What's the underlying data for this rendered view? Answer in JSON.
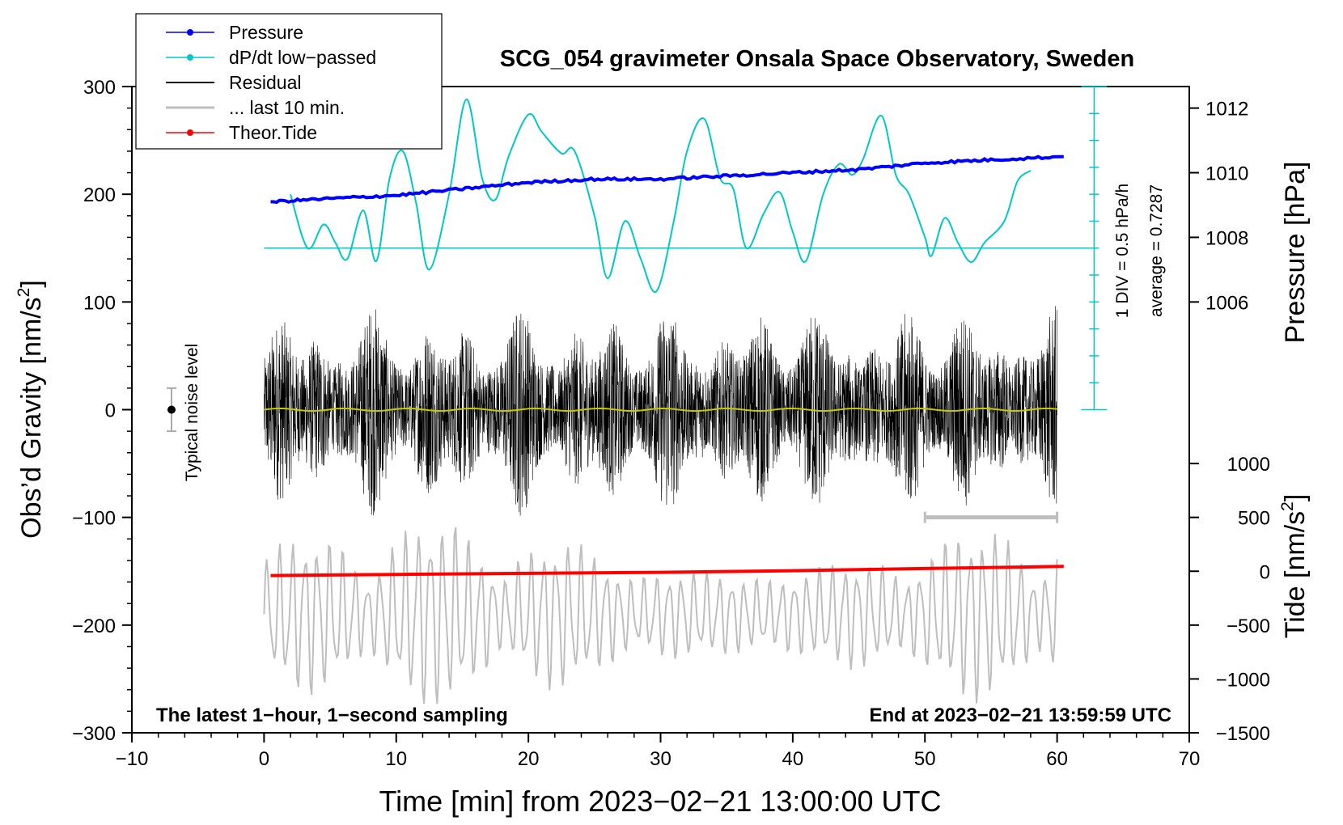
{
  "chart_data": {
    "type": "line",
    "title": "SCG_054 gravimeter Onsala Space Observatory, Sweden",
    "xlabel": "Time [min] from 2023−02−21 13:00:00 UTC",
    "ylabel": "Obs’d Gravity [nm/s",
    "ylabel_sup": "2",
    "ylabel_end": "]",
    "y2label": "Pressure [hPa]",
    "y3label": "Tide [nm/s",
    "y3label_sup": "2",
    "y3label_end": "]",
    "xlim": [
      -10,
      70
    ],
    "ylim": [
      -300,
      300
    ],
    "x_ticks": [
      -10,
      0,
      10,
      20,
      30,
      40,
      50,
      60,
      70
    ],
    "x_tick_labels": [
      "−10",
      "0",
      "10",
      "20",
      "30",
      "40",
      "50",
      "60",
      "70"
    ],
    "y_ticks": [
      300,
      200,
      100,
      0,
      -100,
      -200,
      -300
    ],
    "y_tick_labels": [
      "300",
      "200",
      "100",
      "0",
      "−100",
      "−200",
      "−300"
    ],
    "pressure_axis": {
      "gravity_at_1006": 100,
      "gravity_per_hpa": 30,
      "ticks": [
        1006,
        1008,
        1010,
        1012
      ],
      "tick_labels": [
        "1006",
        "1008",
        "1010",
        "1012"
      ]
    },
    "tide_axis": {
      "gravity_at_zero": -150,
      "gravity_per_unit": 0.1,
      "ticks": [
        1000,
        500,
        0,
        -500,
        -1000,
        -1500
      ],
      "tick_labels": [
        "1000",
        "500",
        "0",
        "−500",
        "−1000",
        "−1500"
      ]
    },
    "dpdt_scale": {
      "label": "1 DIV = 0.5 hPa/h",
      "average_label": "average = 0.7287",
      "x": 62.8,
      "y_range": [
        0,
        300
      ],
      "divisions": 12,
      "zero_line_gravity": 150,
      "zero_line_x_range": [
        0,
        63
      ]
    },
    "noise": {
      "label": "Typical noise level",
      "x": -7,
      "center": 0,
      "half_range": 20
    },
    "range_bar": {
      "x_start": 50,
      "x_end": 60,
      "y": -100
    },
    "bottom_left_note": "The latest 1−hour, 1−second sampling",
    "bottom_right_note": "End at 2023−02−21 13:59:59 UTC",
    "legend": [
      {
        "label": "Pressure",
        "color": "#0000ff",
        "marker": true
      },
      {
        "label": "dP/dt low−passed",
        "color": "#00c8c8",
        "marker": true
      },
      {
        "label": "Residual",
        "color": "#000000",
        "marker": false
      },
      {
        "label": "... last 10 min.",
        "color": "#bebebe",
        "marker": false
      },
      {
        "label": "Theor.Tide",
        "color": "#ff0000",
        "marker": true
      }
    ],
    "series": {
      "pressure_hpa": {
        "name": "Pressure",
        "color": "#0000ff",
        "x": [
          0.5,
          5,
          10,
          15,
          20,
          25,
          30,
          35,
          40,
          45,
          50,
          55,
          60.5
        ],
        "y": [
          1009.1,
          1009.2,
          1009.3,
          1009.5,
          1009.7,
          1009.8,
          1009.8,
          1009.9,
          1010.0,
          1010.1,
          1010.3,
          1010.4,
          1010.5
        ]
      },
      "dpdt_gravity_units": {
        "name": "dP/dt low−passed",
        "color": "#00c8c8",
        "x": [
          2,
          3.3,
          4.5,
          5.4,
          6.3,
          7.5,
          8.5,
          9.5,
          10.5,
          11.5,
          12.5,
          14,
          15.3,
          16.5,
          17.5,
          18.5,
          20,
          21,
          22.5,
          23.5,
          25,
          26,
          27.3,
          28.5,
          29.7,
          31,
          32,
          33.3,
          34.5,
          35.5,
          36.5,
          37.8,
          39,
          40,
          41,
          42.3,
          43.5,
          44.5,
          45.3,
          46.7,
          47.8,
          48.8,
          50,
          50.5,
          51.5,
          52.5,
          53.5,
          54.5,
          56,
          57,
          58
        ],
        "y": [
          200,
          150,
          172,
          155,
          140,
          185,
          138,
          215,
          240,
          192,
          130,
          200,
          288,
          215,
          195,
          235,
          274,
          258,
          238,
          240,
          180,
          122,
          175,
          140,
          110,
          175,
          240,
          270,
          215,
          205,
          150,
          182,
          202,
          165,
          138,
          200,
          228,
          218,
          232,
          273,
          218,
          200,
          160,
          143,
          178,
          155,
          137,
          155,
          175,
          212,
          222
        ]
      },
      "residual": {
        "name": "Residual",
        "color": "#000000",
        "x_range": [
          0,
          60
        ],
        "amp_min": -103,
        "amp_max": 107
      },
      "residual_mean": {
        "name": "Residual smoothed",
        "color": "#c8c800",
        "x_range": [
          0,
          60
        ],
        "approx_value": 0
      },
      "last_10_min": {
        "name": "... last 10 min.",
        "color": "#bebebe",
        "x_range": [
          0,
          60
        ],
        "center": -190,
        "amp_min": -273,
        "amp_max": -103
      },
      "theor_tide": {
        "name": "Theor.Tide",
        "color": "#ff0000",
        "x": [
          0.5,
          10,
          20,
          30,
          40,
          50,
          60.5
        ],
        "y": [
          -40,
          -30,
          -20,
          -10,
          5,
          25,
          45
        ]
      }
    }
  }
}
